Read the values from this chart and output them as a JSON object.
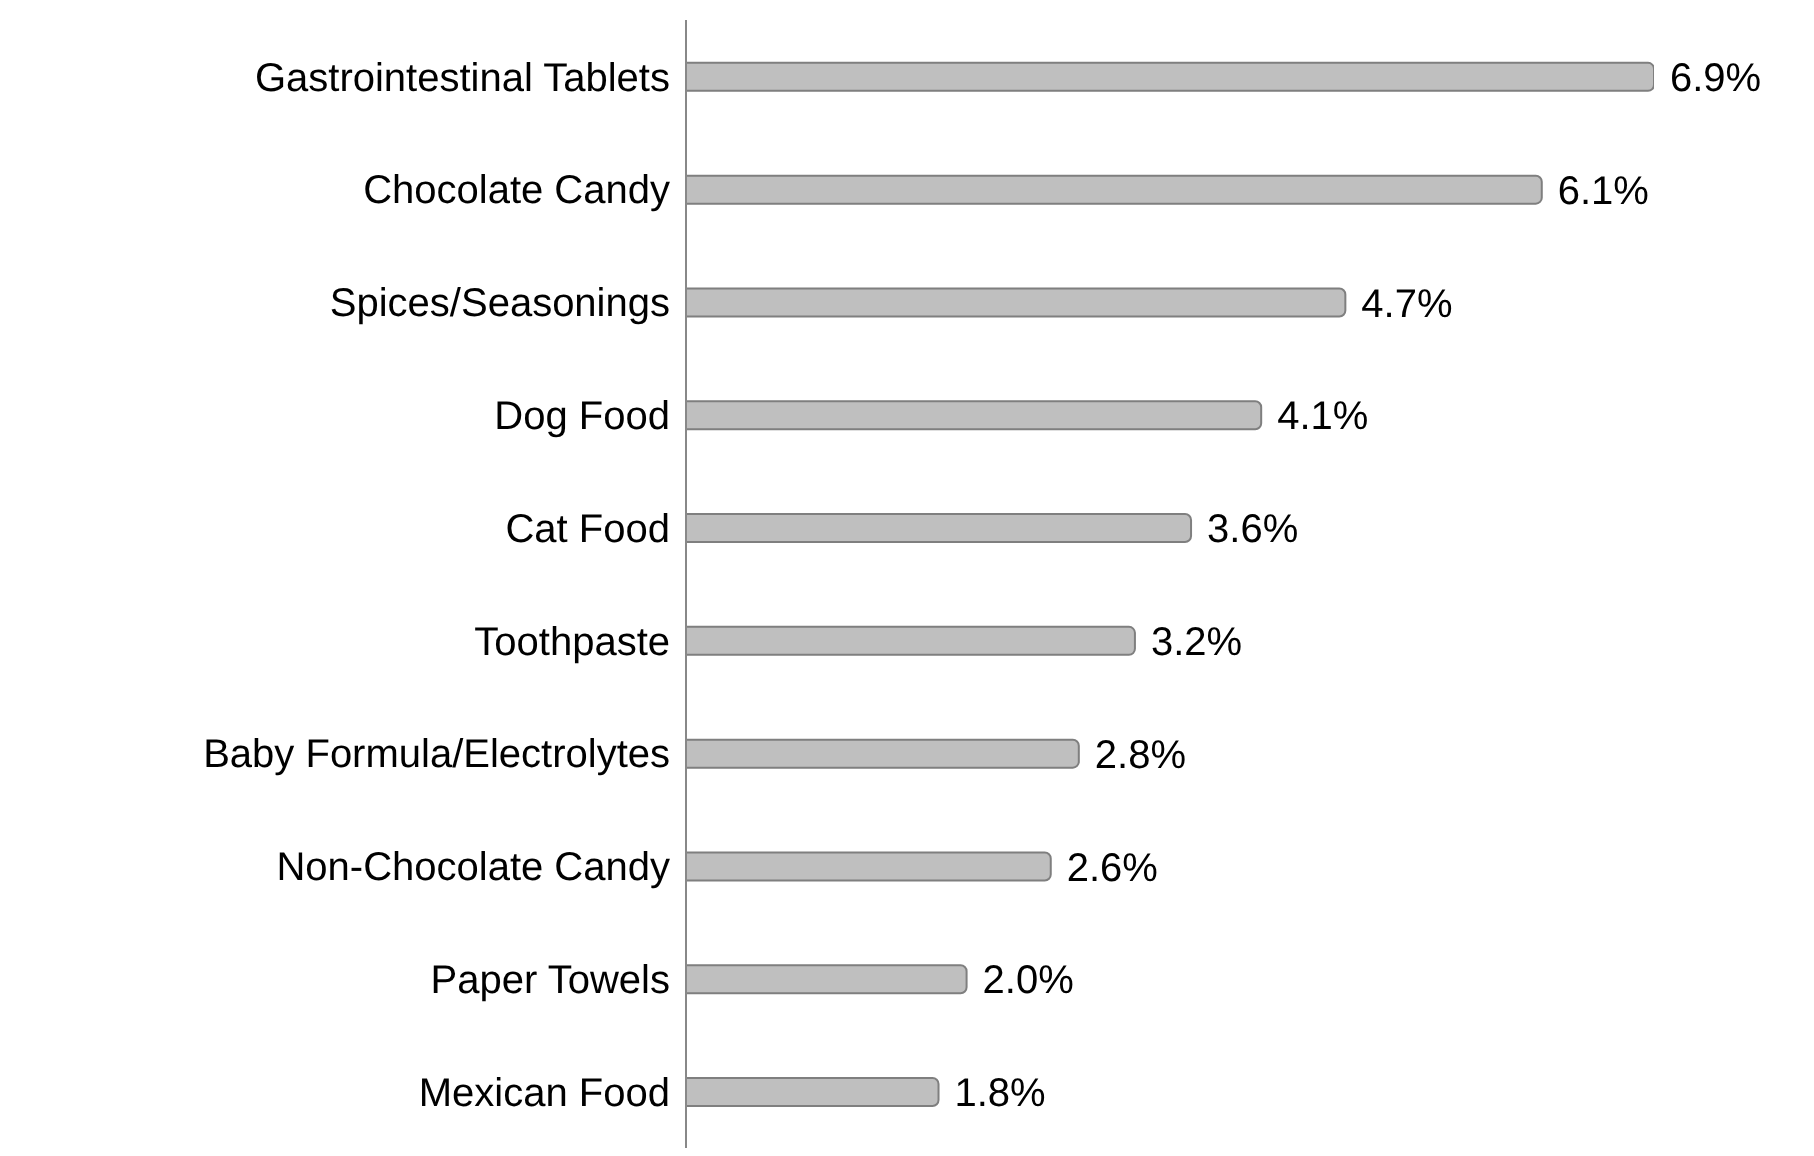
{
  "chart_data": {
    "type": "bar",
    "orientation": "horizontal",
    "tick_labels": "y",
    "color": "#bfbfbf",
    "categories": [
      "Gastrointestinal Tablets",
      "Chocolate Candy",
      "Spices/Seasonings",
      "Dog Food",
      "Cat Food",
      "Toothpaste",
      "Baby Formula/Electrolytes",
      "Non-Chocolate Candy",
      "Paper Towels",
      "Mexican Food"
    ],
    "values": [
      6.9,
      6.1,
      4.7,
      4.1,
      3.6,
      3.2,
      2.8,
      2.6,
      2.0,
      1.8
    ],
    "value_labels": [
      "6.9%",
      "6.1%",
      "4.7%",
      "4.1%",
      "3.6%",
      "3.2%",
      "2.8%",
      "2.6%",
      "2.0%",
      "1.8%"
    ]
  }
}
